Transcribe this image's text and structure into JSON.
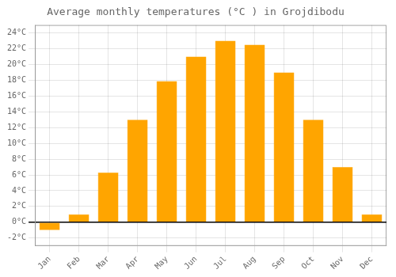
{
  "chart_data": {
    "type": "bar",
    "title": "Average monthly temperatures (°C ) in Grojdibodu",
    "categories": [
      "Jan",
      "Feb",
      "Mar",
      "Apr",
      "May",
      "Jun",
      "Jul",
      "Aug",
      "Sep",
      "Oct",
      "Nov",
      "Dec"
    ],
    "values": [
      -1.0,
      1.0,
      6.3,
      13.0,
      17.9,
      21.0,
      23.0,
      22.5,
      19.0,
      13.0,
      7.0,
      1.0
    ],
    "color": "#FFA500",
    "ylim": [
      -3,
      25
    ],
    "yticks": [
      {
        "value": -2,
        "label": "-2°C"
      },
      {
        "value": 0,
        "label": "0°C"
      },
      {
        "value": 2,
        "label": "2°C"
      },
      {
        "value": 4,
        "label": "4°C"
      },
      {
        "value": 6,
        "label": "6°C"
      },
      {
        "value": 8,
        "label": "8°C"
      },
      {
        "value": 10,
        "label": "10°C"
      },
      {
        "value": 12,
        "label": "12°C"
      },
      {
        "value": 14,
        "label": "14°C"
      },
      {
        "value": 16,
        "label": "16°C"
      },
      {
        "value": 18,
        "label": "18°C"
      },
      {
        "value": 20,
        "label": "20°C"
      },
      {
        "value": 22,
        "label": "22°C"
      },
      {
        "value": 24,
        "label": "24°C"
      }
    ],
    "grid": true
  }
}
